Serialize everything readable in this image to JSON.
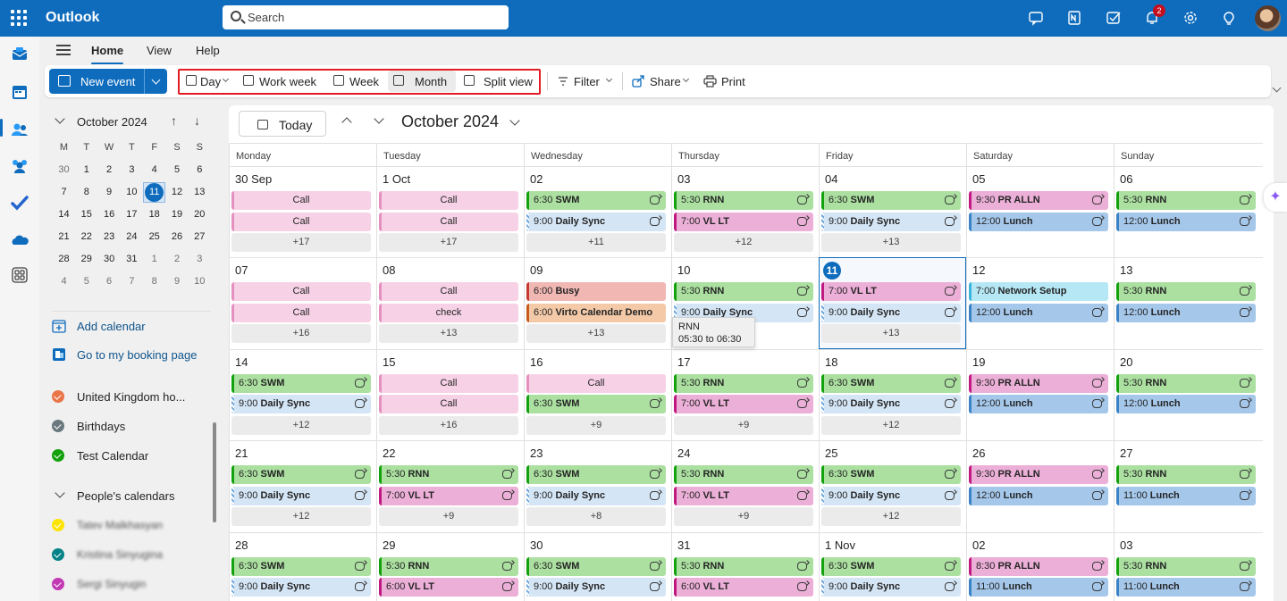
{
  "app": {
    "title": "Outlook"
  },
  "search": {
    "placeholder": "Search"
  },
  "topbar": {
    "icons": [
      "teams-chat-icon",
      "onenote-icon",
      "todo-icon",
      "bell-icon",
      "settings-icon",
      "lightbulb-icon"
    ],
    "notifications": "2"
  },
  "menu": {
    "tabs": [
      "Home",
      "View",
      "Help"
    ],
    "active": "Home"
  },
  "ribbon": {
    "new_event": "New event",
    "views": [
      "Day",
      "Work week",
      "Week",
      "Month",
      "Split view"
    ],
    "active_view": "Month",
    "filter": "Filter",
    "share": "Share",
    "print": "Print"
  },
  "sidebar": {
    "mini_title": "October 2024",
    "weekdays": [
      "M",
      "T",
      "W",
      "T",
      "F",
      "S",
      "S"
    ],
    "weeks": [
      [
        "30",
        "1",
        "2",
        "3",
        "4",
        "5",
        "6"
      ],
      [
        "7",
        "8",
        "9",
        "10",
        "11",
        "12",
        "13"
      ],
      [
        "14",
        "15",
        "16",
        "17",
        "18",
        "19",
        "20"
      ],
      [
        "21",
        "22",
        "23",
        "24",
        "25",
        "26",
        "27"
      ],
      [
        "28",
        "29",
        "30",
        "31",
        "1",
        "2",
        "3"
      ],
      [
        "4",
        "5",
        "6",
        "7",
        "8",
        "9",
        "10"
      ]
    ],
    "add_calendar": "Add calendar",
    "booking": "Go to my booking page",
    "calendars": [
      {
        "label": "United Kingdom ho...",
        "color": "#e97548"
      },
      {
        "label": "Birthdays",
        "color": "#69797e"
      },
      {
        "label": "Test Calendar",
        "color": "#13a10e"
      }
    ],
    "peoples_title": "People's calendars",
    "people": [
      {
        "label": "Tatev Malkhasyan",
        "color": "#fde300"
      },
      {
        "label": "Kristina Sinyugina",
        "color": "#038387"
      },
      {
        "label": "Sergi Sinyugin",
        "color": "#c239b3"
      }
    ]
  },
  "main": {
    "today": "Today",
    "title": "October 2024",
    "day_headers": [
      "Monday",
      "Tuesday",
      "Wednesday",
      "Thursday",
      "Friday",
      "Saturday",
      "Sunday"
    ],
    "weeks": [
      [
        {
          "d": "30 Sep",
          "ev": [
            {
              "t": "",
              "n": "Call",
              "c": "pink"
            },
            {
              "t": "",
              "n": "Call",
              "c": "pink"
            }
          ],
          "more": "+17"
        },
        {
          "d": "1 Oct",
          "ev": [
            {
              "t": "",
              "n": "Call",
              "c": "pink"
            },
            {
              "t": "",
              "n": "Call",
              "c": "pink"
            }
          ],
          "more": "+17"
        },
        {
          "d": "02",
          "ev": [
            {
              "t": "6:30",
              "n": "SWM",
              "c": "green",
              "r": 1
            },
            {
              "t": "9:00",
              "n": "Daily Sync",
              "c": "blue",
              "r": 1,
              "h": 1
            }
          ],
          "more": "+11"
        },
        {
          "d": "03",
          "ev": [
            {
              "t": "5:30",
              "n": "RNN",
              "c": "green",
              "r": 1
            },
            {
              "t": "7:00",
              "n": "VL LT",
              "c": "magenta",
              "r": 1
            }
          ],
          "more": "+12"
        },
        {
          "d": "04",
          "ev": [
            {
              "t": "6:30",
              "n": "SWM",
              "c": "green",
              "r": 1
            },
            {
              "t": "9:00",
              "n": "Daily Sync",
              "c": "blue",
              "r": 1,
              "h": 1
            }
          ],
          "more": "+13"
        },
        {
          "d": "05",
          "ev": [
            {
              "t": "9:30",
              "n": "PR ALLN",
              "c": "magenta",
              "r": 1
            },
            {
              "t": "12:00",
              "n": "Lunch",
              "c": "lunch",
              "r": 1
            }
          ],
          "more": ""
        },
        {
          "d": "06",
          "ev": [
            {
              "t": "5:30",
              "n": "RNN",
              "c": "green",
              "r": 1
            },
            {
              "t": "12:00",
              "n": "Lunch",
              "c": "lunch",
              "r": 1
            }
          ],
          "more": ""
        }
      ],
      [
        {
          "d": "07",
          "ev": [
            {
              "t": "",
              "n": "Call",
              "c": "pink"
            },
            {
              "t": "",
              "n": "Call",
              "c": "pink"
            }
          ],
          "more": "+16"
        },
        {
          "d": "08",
          "ev": [
            {
              "t": "",
              "n": "Call",
              "c": "pink"
            },
            {
              "t": "",
              "n": "check",
              "c": "pink"
            }
          ],
          "more": "+13"
        },
        {
          "d": "09",
          "ev": [
            {
              "t": "6:00",
              "n": "Busy",
              "c": "red"
            },
            {
              "t": "6:00",
              "n": "Virto Calendar Demo",
              "c": "orange"
            }
          ],
          "more": "+13"
        },
        {
          "d": "10",
          "ev": [
            {
              "t": "5:30",
              "n": "RNN",
              "c": "green",
              "r": 1
            },
            {
              "t": "9:00",
              "n": "Daily Sync",
              "c": "blue",
              "r": 1,
              "h": 1
            }
          ],
          "more": ""
        },
        {
          "d": "11",
          "today": true,
          "ev": [
            {
              "t": "7:00",
              "n": "VL LT",
              "c": "magenta",
              "r": 1
            },
            {
              "t": "9:00",
              "n": "Daily Sync",
              "c": "blue",
              "r": 1,
              "h": 1
            }
          ],
          "more": "+13"
        },
        {
          "d": "12",
          "ev": [
            {
              "t": "7:00",
              "n": "Network Setup",
              "c": "cyan"
            },
            {
              "t": "12:00",
              "n": "Lunch",
              "c": "lunch",
              "r": 1
            }
          ],
          "more": ""
        },
        {
          "d": "13",
          "ev": [
            {
              "t": "5:30",
              "n": "RNN",
              "c": "green",
              "r": 1
            },
            {
              "t": "12:00",
              "n": "Lunch",
              "c": "lunch",
              "r": 1
            }
          ],
          "more": ""
        }
      ],
      [
        {
          "d": "14",
          "ev": [
            {
              "t": "6:30",
              "n": "SWM",
              "c": "green",
              "r": 1
            },
            {
              "t": "9:00",
              "n": "Daily Sync",
              "c": "blue",
              "r": 1,
              "h": 1
            }
          ],
          "more": "+12"
        },
        {
          "d": "15",
          "ev": [
            {
              "t": "",
              "n": "Call",
              "c": "pink"
            },
            {
              "t": "",
              "n": "Call",
              "c": "pink"
            }
          ],
          "more": "+16"
        },
        {
          "d": "16",
          "ev": [
            {
              "t": "",
              "n": "Call",
              "c": "pink"
            },
            {
              "t": "6:30",
              "n": "SWM",
              "c": "green",
              "r": 1
            }
          ],
          "more": "+9"
        },
        {
          "d": "17",
          "ev": [
            {
              "t": "5:30",
              "n": "RNN",
              "c": "green",
              "r": 1
            },
            {
              "t": "7:00",
              "n": "VL LT",
              "c": "magenta",
              "r": 1
            }
          ],
          "more": "+9"
        },
        {
          "d": "18",
          "ev": [
            {
              "t": "6:30",
              "n": "SWM",
              "c": "green",
              "r": 1
            },
            {
              "t": "9:00",
              "n": "Daily Sync",
              "c": "blue",
              "r": 1,
              "h": 1
            }
          ],
          "more": "+12"
        },
        {
          "d": "19",
          "ev": [
            {
              "t": "9:30",
              "n": "PR ALLN",
              "c": "magenta",
              "r": 1
            },
            {
              "t": "12:00",
              "n": "Lunch",
              "c": "lunch",
              "r": 1
            }
          ],
          "more": ""
        },
        {
          "d": "20",
          "ev": [
            {
              "t": "5:30",
              "n": "RNN",
              "c": "green",
              "r": 1
            },
            {
              "t": "12:00",
              "n": "Lunch",
              "c": "lunch",
              "r": 1
            }
          ],
          "more": ""
        }
      ],
      [
        {
          "d": "21",
          "ev": [
            {
              "t": "6:30",
              "n": "SWM",
              "c": "green",
              "r": 1
            },
            {
              "t": "9:00",
              "n": "Daily Sync",
              "c": "blue",
              "r": 1,
              "h": 1
            }
          ],
          "more": "+12"
        },
        {
          "d": "22",
          "ev": [
            {
              "t": "5:30",
              "n": "RNN",
              "c": "green",
              "r": 1
            },
            {
              "t": "7:00",
              "n": "VL LT",
              "c": "magenta",
              "r": 1
            }
          ],
          "more": "+9"
        },
        {
          "d": "23",
          "ev": [
            {
              "t": "6:30",
              "n": "SWM",
              "c": "green",
              "r": 1
            },
            {
              "t": "9:00",
              "n": "Daily Sync",
              "c": "blue",
              "r": 1,
              "h": 1
            }
          ],
          "more": "+8"
        },
        {
          "d": "24",
          "ev": [
            {
              "t": "5:30",
              "n": "RNN",
              "c": "green",
              "r": 1
            },
            {
              "t": "7:00",
              "n": "VL LT",
              "c": "magenta",
              "r": 1
            }
          ],
          "more": "+9"
        },
        {
          "d": "25",
          "ev": [
            {
              "t": "6:30",
              "n": "SWM",
              "c": "green",
              "r": 1
            },
            {
              "t": "9:00",
              "n": "Daily Sync",
              "c": "blue",
              "r": 1,
              "h": 1
            }
          ],
          "more": "+12"
        },
        {
          "d": "26",
          "ev": [
            {
              "t": "9:30",
              "n": "PR ALLN",
              "c": "magenta",
              "r": 1
            },
            {
              "t": "12:00",
              "n": "Lunch",
              "c": "lunch",
              "r": 1
            }
          ],
          "more": ""
        },
        {
          "d": "27",
          "ev": [
            {
              "t": "5:30",
              "n": "RNN",
              "c": "green",
              "r": 1
            },
            {
              "t": "11:00",
              "n": "Lunch",
              "c": "lunch",
              "r": 1
            }
          ],
          "more": ""
        }
      ],
      [
        {
          "d": "28",
          "ev": [
            {
              "t": "6:30",
              "n": "SWM",
              "c": "green",
              "r": 1
            },
            {
              "t": "9:00",
              "n": "Daily Sync",
              "c": "blue",
              "r": 1,
              "h": 1
            }
          ],
          "more": ""
        },
        {
          "d": "29",
          "ev": [
            {
              "t": "5:30",
              "n": "RNN",
              "c": "green",
              "r": 1
            },
            {
              "t": "6:00",
              "n": "VL LT",
              "c": "magenta",
              "r": 1
            }
          ],
          "more": ""
        },
        {
          "d": "30",
          "ev": [
            {
              "t": "6:30",
              "n": "SWM",
              "c": "green",
              "r": 1
            },
            {
              "t": "9:00",
              "n": "Daily Sync",
              "c": "blue",
              "r": 1,
              "h": 1
            }
          ],
          "more": ""
        },
        {
          "d": "31",
          "ev": [
            {
              "t": "5:30",
              "n": "RNN",
              "c": "green",
              "r": 1
            },
            {
              "t": "6:00",
              "n": "VL LT",
              "c": "magenta",
              "r": 1
            }
          ],
          "more": ""
        },
        {
          "d": "1 Nov",
          "ev": [
            {
              "t": "6:30",
              "n": "SWM",
              "c": "green",
              "r": 1
            },
            {
              "t": "9:00",
              "n": "Daily Sync",
              "c": "blue",
              "r": 1,
              "h": 1
            }
          ],
          "more": ""
        },
        {
          "d": "02",
          "ev": [
            {
              "t": "8:30",
              "n": "PR ALLN",
              "c": "magenta",
              "r": 1
            },
            {
              "t": "11:00",
              "n": "Lunch",
              "c": "lunch",
              "r": 1
            }
          ],
          "more": ""
        },
        {
          "d": "03",
          "ev": [
            {
              "t": "5:30",
              "n": "RNN",
              "c": "green",
              "r": 1
            },
            {
              "t": "11:00",
              "n": "Lunch",
              "c": "lunch",
              "r": 1
            }
          ],
          "more": ""
        }
      ]
    ],
    "tooltip": {
      "title": "RNN",
      "time": "05:30 to 06:30"
    }
  },
  "colors": {
    "pink": {
      "bg": "#f7d2e6",
      "bar": "#e58fbf"
    },
    "green": {
      "bg": "#abe0a0",
      "bar": "#13a10e"
    },
    "blue": {
      "bg": "#d4e5f5",
      "bar": "#6ea7dc"
    },
    "magenta": {
      "bg": "#ecafd7",
      "bar": "#c0197f"
    },
    "lunch": {
      "bg": "#a5c7ea",
      "bar": "#3b82c6"
    },
    "red": {
      "bg": "#f0b7b3",
      "bar": "#c43a31"
    },
    "orange": {
      "bg": "#f3c9a8",
      "bar": "#c75b1b"
    },
    "cyan": {
      "bg": "#b5e7f5",
      "bar": "#3ab5dc"
    },
    "accent": "#0f6cbd"
  }
}
